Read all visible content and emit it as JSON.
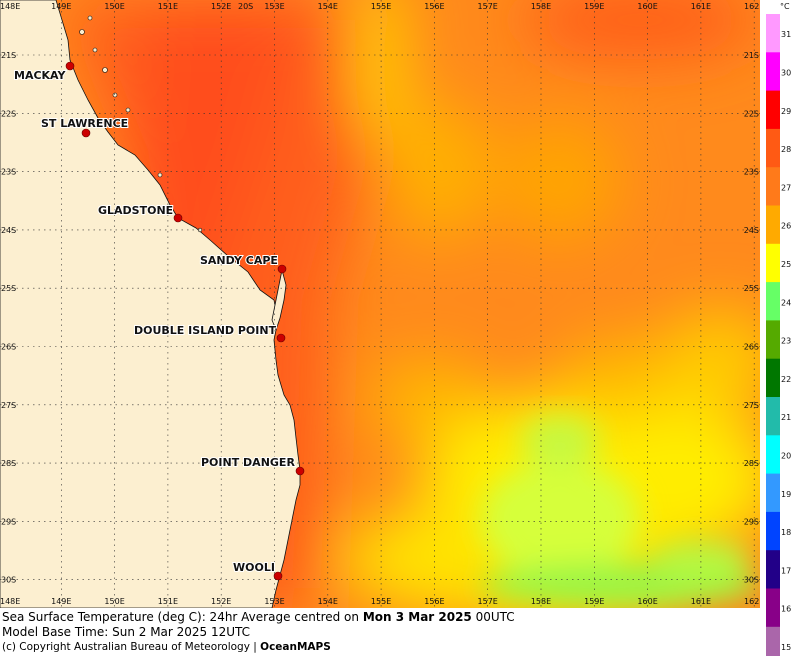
{
  "map": {
    "lon_labels": [
      "148E",
      "149E",
      "150E",
      "151E",
      "152E",
      "153E",
      "154E",
      "155E",
      "156E",
      "157E",
      "158E",
      "159E",
      "160E",
      "161E",
      "162E"
    ],
    "lat_labels": [
      "21S",
      "22S",
      "23S",
      "24S",
      "25S",
      "26S",
      "27S",
      "28S",
      "29S",
      "30S"
    ],
    "top_extra_label": "20S",
    "places": [
      {
        "name": "MACKAY"
      },
      {
        "name": "ST LAWRENCE"
      },
      {
        "name": "GLADSTONE"
      },
      {
        "name": "SANDY CAPE"
      },
      {
        "name": "DOUBLE ISLAND POINT"
      },
      {
        "name": "POINT DANGER"
      },
      {
        "name": "WOOLI"
      }
    ]
  },
  "legend": {
    "unit": "°C",
    "entries": [
      {
        "value": "31",
        "color": "#ff99ff"
      },
      {
        "value": "30",
        "color": "#ff00ff"
      },
      {
        "value": "29",
        "color": "#ff0000"
      },
      {
        "value": "28",
        "color": "#ff5a14"
      },
      {
        "value": "27",
        "color": "#ff7a1a"
      },
      {
        "value": "26",
        "color": "#ffaa00"
      },
      {
        "value": "25",
        "color": "#ffff00"
      },
      {
        "value": "24",
        "color": "#66ff66"
      },
      {
        "value": "23",
        "color": "#55aa00"
      },
      {
        "value": "22",
        "color": "#007700"
      },
      {
        "value": "21",
        "color": "#22bbaa"
      },
      {
        "value": "20",
        "color": "#00ffff"
      },
      {
        "value": "19",
        "color": "#3399ff"
      },
      {
        "value": "18",
        "color": "#0044ff"
      },
      {
        "value": "17",
        "color": "#220088"
      },
      {
        "value": "16",
        "color": "#880088"
      },
      {
        "value": "15",
        "color": "#aa66aa"
      }
    ]
  },
  "caption": {
    "line1_prefix": "Sea Surface Temperature (deg C): 24hr Average centred on ",
    "line1_date": "Mon 3 Mar 2025",
    "line1_suffix": " 00UTC",
    "line2": "Model Base Time: Sun 2 Mar 2025 12UTC",
    "line3_prefix": "(c) Copyright Australian Bureau of Meteorology | ",
    "line3_brand": "OceanMAPS"
  }
}
